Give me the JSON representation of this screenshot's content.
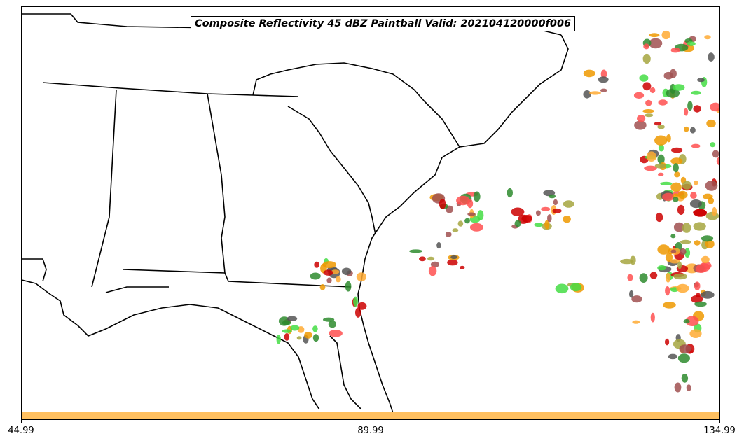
{
  "title": "Composite Reflectivity 45 dBZ Paintball Valid: 202104120000f006",
  "colorbar": {
    "color": "#ffc060",
    "ticks": [
      "44.99",
      "89.99",
      "134.99"
    ]
  },
  "paintball_colors": [
    "#ff5050",
    "#a05050",
    "#ffaa33",
    "#ee9900",
    "#44dd44",
    "#2e8b2e",
    "#a6a640",
    "#555555",
    "#cc0000"
  ],
  "map": {
    "lines": "state and coastal boundaries, black"
  }
}
